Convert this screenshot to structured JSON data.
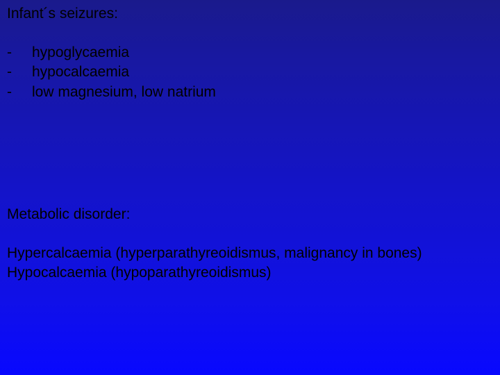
{
  "colors": {
    "text": "#000000",
    "bg_gradient_top": "#1a1a8c",
    "bg_gradient_bottom": "#0808ff"
  },
  "typography": {
    "font_family": "Arial",
    "font_size_pt": 16,
    "font_weight": 400
  },
  "section1": {
    "heading": "Infant´s seizures:",
    "bullets": [
      {
        "marker": "-",
        "text": "hypoglycaemia"
      },
      {
        "marker": "-",
        "text": "hypocalcaemia"
      },
      {
        "marker": "-",
        "text": "low magnesium, low natrium"
      }
    ]
  },
  "section2": {
    "heading": "Metabolic disorder:",
    "lines": [
      "Hypercalcaemia (hyperparathyreoidismus, malignancy in bones)",
      "Hypocalcaemia   (hypoparathyreoidismus)"
    ]
  }
}
